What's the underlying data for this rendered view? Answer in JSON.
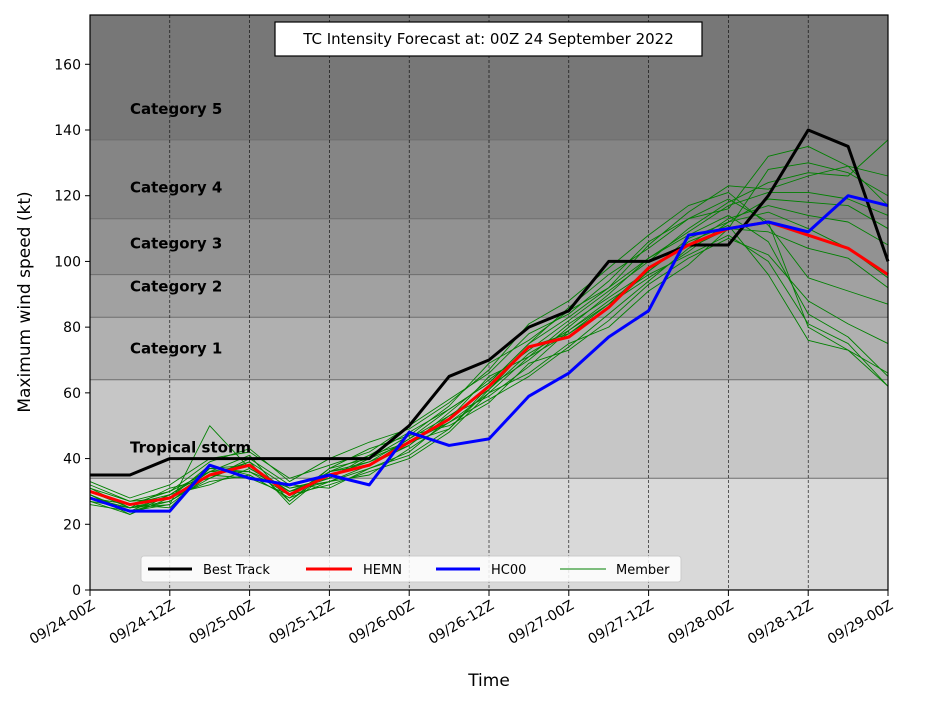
{
  "chart_data": {
    "type": "line",
    "title": "TC Intensity Forecast at: 00Z 24 September 2022",
    "xlabel": "Time",
    "ylabel": "Maximum wind speed (kt)",
    "ylim": [
      0,
      175
    ],
    "yticks": [
      0,
      20,
      40,
      60,
      80,
      100,
      120,
      140,
      160
    ],
    "x_tick_labels": [
      "09/24-00Z",
      "09/24-12Z",
      "09/25-00Z",
      "09/25-12Z",
      "09/26-00Z",
      "09/26-12Z",
      "09/27-00Z",
      "09/27-12Z",
      "09/28-00Z",
      "09/28-12Z",
      "09/29-00Z"
    ],
    "x_hours": [
      0,
      6,
      12,
      18,
      24,
      30,
      36,
      42,
      48,
      54,
      60,
      66,
      72,
      78,
      84,
      90,
      96,
      102,
      108,
      114,
      120
    ],
    "grid": "vertical dashed lines at major ticks",
    "legend_position": "bottom-center",
    "bands": [
      {
        "label": "",
        "from": 0,
        "to": 34,
        "color": "#d9d9d9"
      },
      {
        "label": "Tropical storm",
        "from": 34,
        "to": 64,
        "color": "#c6c6c6"
      },
      {
        "label": "Category 1",
        "from": 64,
        "to": 83,
        "color": "#b0b0b0"
      },
      {
        "label": "Category 2",
        "from": 83,
        "to": 96,
        "color": "#a1a1a1"
      },
      {
        "label": "Category 3",
        "from": 96,
        "to": 113,
        "color": "#929292"
      },
      {
        "label": "Category 4",
        "from": 113,
        "to": 137,
        "color": "#858585"
      },
      {
        "label": "Category 5",
        "from": 137,
        "to": 175,
        "color": "#777777"
      }
    ],
    "series": [
      {
        "name": "Best Track",
        "color": "#000000",
        "values": [
          35,
          35,
          40,
          40,
          40,
          40,
          40,
          40,
          50,
          65,
          70,
          80,
          85,
          100,
          100,
          105,
          105,
          120,
          140,
          135,
          100
        ]
      },
      {
        "name": "HEMN",
        "color": "#ff0000",
        "values": [
          30,
          26,
          28,
          35,
          38,
          29,
          35,
          38,
          45,
          52,
          62,
          74,
          77,
          86,
          98,
          105,
          110,
          112,
          108,
          104,
          96
        ]
      },
      {
        "name": "HC00",
        "color": "#0000ff",
        "values": [
          28,
          24,
          24,
          38,
          34,
          32,
          35,
          32,
          48,
          44,
          46,
          59,
          66,
          77,
          85,
          108,
          110,
          112,
          109,
          120,
          117
        ]
      }
    ],
    "members": {
      "name": "Member",
      "color": "#008000",
      "values": [
        [
          29,
          24,
          29,
          36,
          41,
          27,
          37,
          43,
          47,
          56,
          69,
          76,
          85,
          92,
          105,
          115,
          123,
          122,
          126,
          129,
          117
        ],
        [
          31,
          25,
          26,
          50,
          37,
          30,
          33,
          37,
          41,
          49,
          61,
          74,
          78,
          86,
          97,
          107,
          112,
          115,
          110,
          104,
          95
        ],
        [
          27,
          23,
          28,
          33,
          35,
          28,
          33,
          35,
          43,
          51,
          58,
          65,
          74,
          84,
          94,
          104,
          110,
          109,
          104,
          101,
          92
        ],
        [
          32,
          27,
          30,
          39,
          43,
          33,
          40,
          45,
          49,
          57,
          67,
          81,
          88,
          98,
          108,
          117,
          121,
          111,
          95,
          91,
          87
        ],
        [
          28,
          26,
          25,
          37,
          36,
          31,
          34,
          40,
          45,
          49,
          62,
          70,
          80,
          90,
          101,
          108,
          114,
          106,
          84,
          77,
          65
        ],
        [
          30,
          25,
          31,
          34,
          39,
          26,
          36,
          38,
          46,
          53,
          59,
          68,
          79,
          88,
          96,
          102,
          108,
          100,
          81,
          75,
          62
        ],
        [
          26,
          24,
          27,
          35,
          34,
          29,
          32,
          36,
          40,
          48,
          60,
          66,
          75,
          80,
          91,
          99,
          110,
          128,
          130,
          127,
          120
        ],
        [
          33,
          28,
          32,
          40,
          42,
          34,
          38,
          42,
          50,
          58,
          66,
          78,
          84,
          94,
          106,
          113,
          116,
          132,
          135,
          129,
          126
        ],
        [
          29,
          23,
          29,
          32,
          37,
          30,
          35,
          39,
          44,
          54,
          64,
          73,
          82,
          91,
          100,
          110,
          118,
          124,
          127,
          126,
          137
        ],
        [
          30,
          26,
          30,
          36,
          38,
          27,
          36,
          41,
          48,
          55,
          63,
          75,
          86,
          96,
          104,
          113,
          119,
          112,
          80,
          73,
          66
        ],
        [
          28,
          25,
          27,
          34,
          40,
          32,
          31,
          37,
          42,
          52,
          65,
          71,
          81,
          89,
          97,
          106,
          111,
          96,
          76,
          73,
          62
        ],
        [
          31,
          27,
          28,
          38,
          35,
          28,
          37,
          40,
          47,
          50,
          57,
          69,
          73,
          82,
          93,
          101,
          107,
          102,
          88,
          81,
          75
        ],
        [
          29,
          24,
          26,
          35,
          39,
          31,
          33,
          38,
          44,
          53,
          61,
          72,
          79,
          87,
          95,
          103,
          112,
          119,
          118,
          117,
          110
        ],
        [
          27,
          25,
          28,
          36,
          36,
          29,
          36,
          39,
          46,
          55,
          63,
          75,
          83,
          92,
          101,
          109,
          117,
          121,
          121,
          119,
          114
        ],
        [
          30,
          26,
          29,
          37,
          38,
          30,
          34,
          41,
          45,
          51,
          60,
          71,
          78,
          87,
          98,
          105,
          113,
          117,
          114,
          112,
          105
        ]
      ]
    }
  },
  "legend": {
    "best_track": "Best Track",
    "hemn": "HEMN",
    "hc00": "HC00",
    "member": "Member"
  }
}
